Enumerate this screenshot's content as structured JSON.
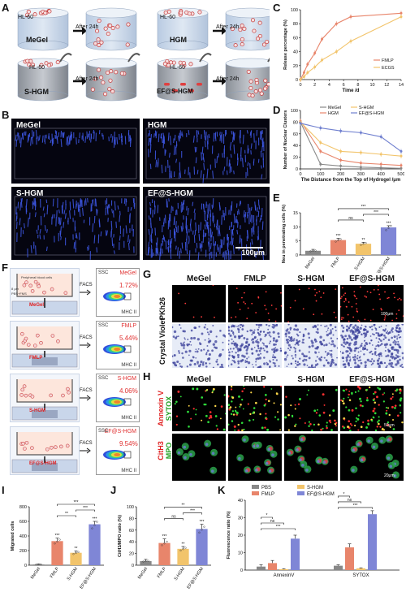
{
  "panels": {
    "A": {
      "label": "A",
      "cylinders": [
        {
          "top_label": "HL-60",
          "body_label": "MeGel",
          "after": "After 24h"
        },
        {
          "top_label": "HL-60",
          "body_label": "HGM",
          "after": "After 24h"
        },
        {
          "top_label": "HL-60",
          "body_label": "S-HGM",
          "after": "After 24h"
        },
        {
          "top_label": "HL-60",
          "body_label": "EF@S-HGM",
          "after": "After 24h"
        }
      ]
    },
    "B": {
      "label": "B",
      "images": [
        {
          "title": "MeGel"
        },
        {
          "title": "HGM"
        },
        {
          "title": "S-HGM"
        },
        {
          "title": "EF@S-HGM"
        }
      ],
      "scale": "100μm"
    },
    "F": {
      "label": "F",
      "top_scheme_labels": [
        "Peripheral blood cells",
        "8 μm",
        "PBS+FMS"
      ],
      "rows": [
        {
          "group": "MeGel",
          "percent": "1.72%",
          "facs": "FACS"
        },
        {
          "group": "FMLP",
          "percent": "5.44%",
          "facs": "FACS"
        },
        {
          "group": "S-HGM",
          "percent": "4.06%",
          "facs": "FACS"
        },
        {
          "group": "EF@S-HGM",
          "percent": "9.54%",
          "facs": "FACS"
        }
      ],
      "axis_y": "SSC",
      "axis_x": "MHC II"
    },
    "G": {
      "label": "G",
      "columns": [
        "MeGel",
        "FMLP",
        "S-HGM",
        "EF@S-HGM"
      ],
      "rows": [
        "PKh26",
        "Crystal Violet"
      ],
      "scale": "100μm"
    },
    "H": {
      "label": "H",
      "columns": [
        "MeGel",
        "FMLP",
        "S-HGM",
        "EF@S-HGM"
      ],
      "row1_a": "Annexin V",
      "row1_b": "SYTOX",
      "row2_a": "CitH3",
      "row2_b": "MPO",
      "scale1": "50μm",
      "scale2": "20μm"
    }
  },
  "chart_data": [
    {
      "panel": "C",
      "type": "line",
      "xlabel": "Time /d",
      "ylabel": "Release percentage (%)",
      "xlim": [
        0,
        14
      ],
      "ylim": [
        0,
        100
      ],
      "xticks": [
        0,
        2,
        4,
        6,
        8,
        10,
        12,
        14
      ],
      "yticks": [
        0,
        20,
        40,
        60,
        80,
        100
      ],
      "series": [
        {
          "name": "FMLP",
          "color": "#e8856b",
          "x": [
            0,
            0.5,
            1,
            2,
            3,
            5,
            7,
            14
          ],
          "y": [
            0,
            10,
            22,
            38,
            58,
            80,
            90,
            95
          ]
        },
        {
          "name": "ECGS",
          "color": "#f2c46b",
          "x": [
            0,
            0.5,
            1,
            2,
            3,
            5,
            7,
            14
          ],
          "y": [
            0,
            4,
            10,
            18,
            28,
            40,
            55,
            90
          ]
        }
      ]
    },
    {
      "panel": "D",
      "type": "line",
      "xlabel": "The Distance from the Top of Hydrogel /μm",
      "ylabel": "Number of Nuclear Clusters",
      "xlim": [
        0,
        500
      ],
      "ylim": [
        0,
        100
      ],
      "xticks": [
        0,
        100,
        200,
        300,
        400,
        500
      ],
      "yticks": [
        0,
        20,
        40,
        60,
        80,
        100
      ],
      "series": [
        {
          "name": "MeGel",
          "color": "#888888",
          "x": [
            0,
            100,
            200,
            300,
            400,
            500
          ],
          "y": [
            80,
            8,
            5,
            3,
            2,
            1
          ]
        },
        {
          "name": "HGM",
          "color": "#e8856b",
          "x": [
            0,
            100,
            200,
            300,
            400,
            500
          ],
          "y": [
            82,
            30,
            15,
            10,
            8,
            6
          ]
        },
        {
          "name": "S-HGM",
          "color": "#f2c46b",
          "x": [
            0,
            100,
            200,
            300,
            400,
            500
          ],
          "y": [
            80,
            45,
            30,
            28,
            25,
            22
          ]
        },
        {
          "name": "EF@S-HGM",
          "color": "#6f7fcf",
          "x": [
            0,
            100,
            200,
            300,
            400,
            500
          ],
          "y": [
            78,
            70,
            65,
            62,
            55,
            30
          ]
        }
      ]
    },
    {
      "panel": "E",
      "type": "bar",
      "ylabel": "Neu in penetrating cells (%)",
      "categories": [
        "MeGel",
        "FMLP",
        "S-HGM",
        "EF@S-HGM"
      ],
      "values": [
        1.5,
        5.3,
        4.0,
        9.8
      ],
      "errors": [
        0.5,
        0.6,
        0.5,
        0.6
      ],
      "colors": [
        "#888888",
        "#e8856b",
        "#f2c46b",
        "#7f86d6"
      ],
      "ylim": [
        0,
        15
      ],
      "yticks": [
        0,
        5,
        10,
        15
      ],
      "sig_above": [
        "",
        "***",
        "**",
        "***"
      ],
      "brackets": [
        {
          "from": 1,
          "to": 3,
          "label": "***"
        },
        {
          "from": 2,
          "to": 3,
          "label": "***"
        },
        {
          "from": 1,
          "to": 2,
          "label": "ns"
        }
      ]
    },
    {
      "panel": "I",
      "type": "bar",
      "ylabel": "Migrated cells",
      "categories": [
        "MeGel",
        "FMLP",
        "S-HGM",
        "EF@S-HGM"
      ],
      "values": [
        10,
        330,
        170,
        560
      ],
      "errors": [
        5,
        40,
        25,
        40
      ],
      "colors": [
        "#888888",
        "#e8856b",
        "#f2c46b",
        "#7f86d6"
      ],
      "ylim": [
        0,
        800
      ],
      "yticks": [
        0,
        200,
        400,
        600,
        800
      ],
      "sig_above": [
        "",
        "***",
        "**",
        "***"
      ],
      "brackets": [
        {
          "from": 1,
          "to": 3,
          "label": "***"
        },
        {
          "from": 2,
          "to": 3,
          "label": "***"
        },
        {
          "from": 1,
          "to": 2,
          "label": "**"
        }
      ]
    },
    {
      "panel": "J",
      "type": "bar",
      "ylabel": "CitH3/MPO ratio (%)",
      "categories": [
        "MeGel",
        "FMLP",
        "S-HGM",
        "EF@S-HGM"
      ],
      "values": [
        7,
        38,
        28,
        62
      ],
      "errors": [
        3,
        7,
        4,
        8
      ],
      "colors": [
        "#888888",
        "#e8856b",
        "#f2c46b",
        "#7f86d6"
      ],
      "ylim": [
        0,
        100
      ],
      "yticks": [
        0,
        20,
        40,
        60,
        80,
        100
      ],
      "sig_above": [
        "",
        "***",
        "**",
        "***"
      ],
      "brackets": [
        {
          "from": 1,
          "to": 3,
          "label": "**"
        },
        {
          "from": 2,
          "to": 3,
          "label": "***"
        },
        {
          "from": 1,
          "to": 2,
          "label": "ns"
        }
      ]
    },
    {
      "panel": "K",
      "type": "bar",
      "ylabel": "Fluorescence ratio (%)",
      "groups": [
        "AnnexinV",
        "SYTOX"
      ],
      "ylim": [
        0,
        40
      ],
      "yticks": [
        0,
        10,
        20,
        30,
        40
      ],
      "series": [
        {
          "name": "PBS",
          "color": "#888888",
          "values": [
            2,
            2.5
          ],
          "errors": [
            1,
            0.5
          ]
        },
        {
          "name": "FMLP",
          "color": "#e8856b",
          "values": [
            4,
            13
          ],
          "errors": [
            1.5,
            2
          ]
        },
        {
          "name": "S-HGM",
          "color": "#f2c46b",
          "values": [
            0.5,
            1
          ],
          "errors": [
            0.3,
            0.3
          ]
        },
        {
          "name": "EF@S-HGM",
          "color": "#7f86d6",
          "values": [
            18,
            32
          ],
          "errors": [
            2,
            2
          ]
        }
      ],
      "brackets": [
        {
          "group": 0,
          "from": 0,
          "to": 3,
          "label": "***"
        },
        {
          "group": 0,
          "from": 0,
          "to": 2,
          "label": "ns"
        },
        {
          "group": 0,
          "from": 0,
          "to": 1,
          "label": "*"
        },
        {
          "group": 1,
          "from": 0,
          "to": 3,
          "label": "***"
        },
        {
          "group": 1,
          "from": 0,
          "to": 2,
          "label": "ns"
        },
        {
          "group": 1,
          "from": 0,
          "to": 1,
          "label": "*"
        }
      ]
    }
  ]
}
